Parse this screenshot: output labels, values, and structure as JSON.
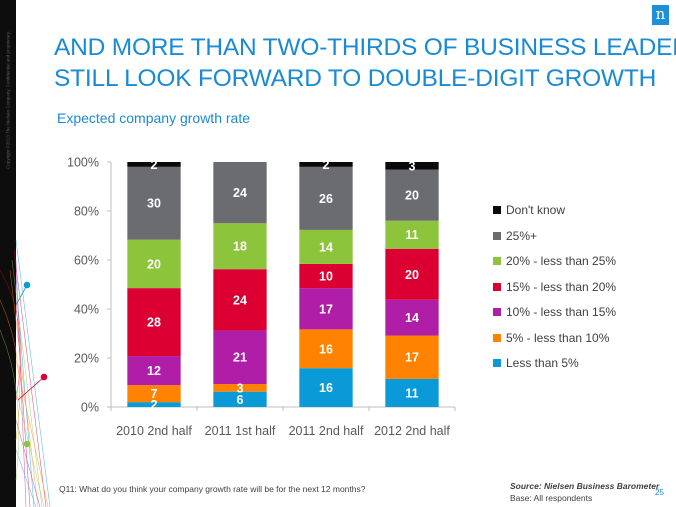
{
  "slide": {
    "title_lines": [
      "AND MORE THAN TWO-THIRDS OF BUSINESS LEADERS",
      "STILL LOOK FORWARD TO DOUBLE-DIGIT GROWTH"
    ],
    "subtitle": "Expected company growth rate",
    "copyright": "Copyright ©2013 The Nielsen Company. Confidential and proprietary.",
    "logo_letter": "n",
    "footnote": "Q11: What do you think your company growth rate will be for the next 12 months?",
    "source_title": "Source: Nielsen Business Barometer",
    "source_base": "Base: All respondents",
    "page_number": "25",
    "colors": {
      "title": "#1a8ad4",
      "logo": "#1e90d8",
      "side_strip": "#0d0d0d"
    }
  },
  "chart_data": {
    "type": "bar",
    "stacked": "percent",
    "title": "Expected company growth rate",
    "xlabel": "",
    "ylabel": "",
    "ylim": [
      0,
      100
    ],
    "yticks": [
      "0%",
      "20%",
      "40%",
      "60%",
      "80%",
      "100%"
    ],
    "ytick_values": [
      0,
      20,
      40,
      60,
      80,
      100
    ],
    "grid": false,
    "legend_position": "right",
    "categories": [
      "2010 2nd half",
      "2011 1st half",
      "2011 2nd half",
      "2012 2nd half"
    ],
    "series": [
      {
        "name": "Less than 5%",
        "color": "#0a9ad7",
        "values": [
          2,
          6,
          16,
          11
        ]
      },
      {
        "name": "5% - less than 10%",
        "color": "#ff8200",
        "values": [
          7,
          3,
          16,
          17
        ]
      },
      {
        "name": "10% - less than 15%",
        "color": "#b01ea8",
        "values": [
          12,
          21,
          17,
          14
        ]
      },
      {
        "name": "15% -  less than 20%",
        "color": "#dc0032",
        "values": [
          28,
          24,
          10,
          20
        ]
      },
      {
        "name": "20% - less than 25%",
        "color": "#8cc43c",
        "values": [
          20,
          18,
          14,
          11
        ]
      },
      {
        "name": "25%+",
        "color": "#6b6c70",
        "values": [
          30,
          24,
          26,
          20
        ]
      },
      {
        "name": "Don't know",
        "color": "#0a0a0a",
        "values": [
          2,
          0,
          2,
          3
        ]
      }
    ],
    "legend_order": [
      "Don't know",
      "25%+",
      "20% - less than 25%",
      "15% -  less than 20%",
      "10% - less than 15%",
      "5% - less than 10%",
      "Less than 5%"
    ]
  }
}
